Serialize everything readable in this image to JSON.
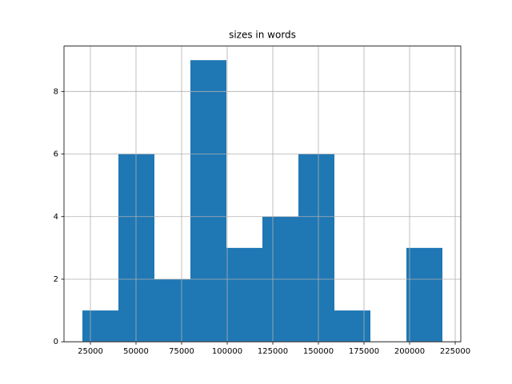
{
  "chart_data": {
    "type": "histogram",
    "title": "sizes in words",
    "bins": [
      20614,
      40351,
      60088,
      79825,
      99562,
      119299,
      139036,
      158773,
      178510,
      198247,
      217984
    ],
    "counts": [
      1,
      6,
      2,
      9,
      3,
      4,
      6,
      1,
      0,
      3
    ],
    "color": "#1f77b4",
    "xlim": [
      10526,
      228070
    ],
    "xticks": [
      25000,
      50000,
      75000,
      100000,
      125000,
      150000,
      175000,
      200000,
      225000
    ],
    "ylim": [
      0,
      9.45
    ],
    "yticks": [
      0,
      2,
      4,
      6,
      8
    ],
    "grid": true
  }
}
